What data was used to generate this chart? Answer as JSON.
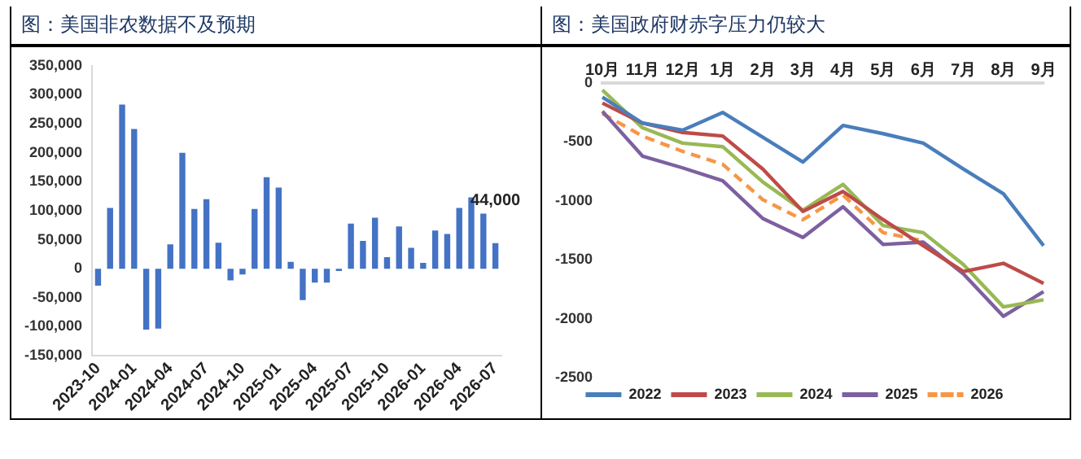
{
  "chart_data": [
    {
      "type": "bar",
      "title": "图：美国非农数据不及预期",
      "categories": [
        "2023-10",
        null,
        null,
        "2024-01",
        null,
        null,
        "2024-04",
        null,
        null,
        "2024-07",
        null,
        null,
        "2024-10",
        null,
        null,
        "2025-01",
        null,
        null,
        "2025-04",
        null,
        null,
        "2025-07",
        null,
        null,
        "2025-10",
        null,
        null,
        "2026-01",
        null,
        null,
        "2026-04",
        null,
        null,
        "2026-07"
      ],
      "values": [
        -29000,
        105000,
        283000,
        241000,
        -105000,
        -103000,
        42000,
        200000,
        103000,
        120000,
        45000,
        -20000,
        -10000,
        103000,
        158000,
        140000,
        12000,
        -54000,
        -24000,
        -24000,
        -4000,
        78000,
        48000,
        88000,
        20000,
        73000,
        36000,
        10000,
        66000,
        60000,
        105000,
        123000,
        95000,
        44000
      ],
      "value_labels": [
        null,
        null,
        null,
        null,
        null,
        null,
        null,
        null,
        null,
        null,
        null,
        null,
        null,
        null,
        null,
        null,
        null,
        null,
        null,
        null,
        null,
        null,
        null,
        null,
        null,
        null,
        null,
        null,
        null,
        null,
        null,
        null,
        null,
        "44,000"
      ],
      "color": "#4472c4",
      "ylim": [
        -150000,
        350000
      ],
      "yticks": [
        {
          "value": -150000,
          "label": "-150,000"
        },
        {
          "value": -100000,
          "label": "-100,000"
        },
        {
          "value": -50000,
          "label": "-50,000"
        },
        0,
        {
          "value": 50000,
          "label": "50,000"
        },
        {
          "value": 100000,
          "label": "100,000"
        },
        {
          "value": 150000,
          "label": "150,000"
        },
        {
          "value": 200000,
          "label": "200,000"
        },
        {
          "value": 250000,
          "label": "250,000"
        },
        {
          "value": 300000,
          "label": "300,000"
        },
        {
          "value": 350000,
          "label": "350,000"
        }
      ],
      "grid": false,
      "legend": false
    },
    {
      "type": "line",
      "title": "图：美国政府财赤字压力仍较大",
      "categories": [
        "10月",
        "11月",
        "12月",
        "1月",
        "2月",
        "3月",
        "4月",
        "5月",
        "6月",
        "7月",
        "8月",
        "9月"
      ],
      "series": [
        {
          "name": "2022",
          "color": "#4a7ebb",
          "values": [
            -120,
            -340,
            -400,
            -250,
            -460,
            -670,
            -360,
            -430,
            -510,
            -730,
            -940,
            -1380
          ]
        },
        {
          "name": "2023",
          "color": "#be4b48",
          "values": [
            -170,
            -340,
            -420,
            -450,
            -730,
            -1090,
            -920,
            -1160,
            -1380,
            -1600,
            -1530,
            -1700
          ]
        },
        {
          "name": "2024",
          "color": "#98b954",
          "values": [
            -60,
            -380,
            -510,
            -540,
            -840,
            -1080,
            -860,
            -1210,
            -1270,
            -1540,
            -1900,
            -1840
          ]
        },
        {
          "name": "2025",
          "color": "#7d60a0",
          "values": [
            -240,
            -620,
            -720,
            -830,
            -1150,
            -1310,
            -1050,
            -1370,
            -1350,
            -1620,
            -1980,
            -1770
          ]
        },
        {
          "name": "2026",
          "color": "#f79646",
          "line_style": "dashed",
          "values": [
            -260,
            -450,
            -580,
            -690,
            -990,
            -1160,
            -950,
            -1270,
            -1340,
            null,
            null,
            null
          ]
        }
      ],
      "ylim": [
        -2500,
        0
      ],
      "yticks": [
        -2500,
        -2000,
        -1500,
        -1000,
        -500,
        0
      ],
      "grid": false,
      "legend": "bottom",
      "marker": "none",
      "line_style": "solid"
    }
  ]
}
